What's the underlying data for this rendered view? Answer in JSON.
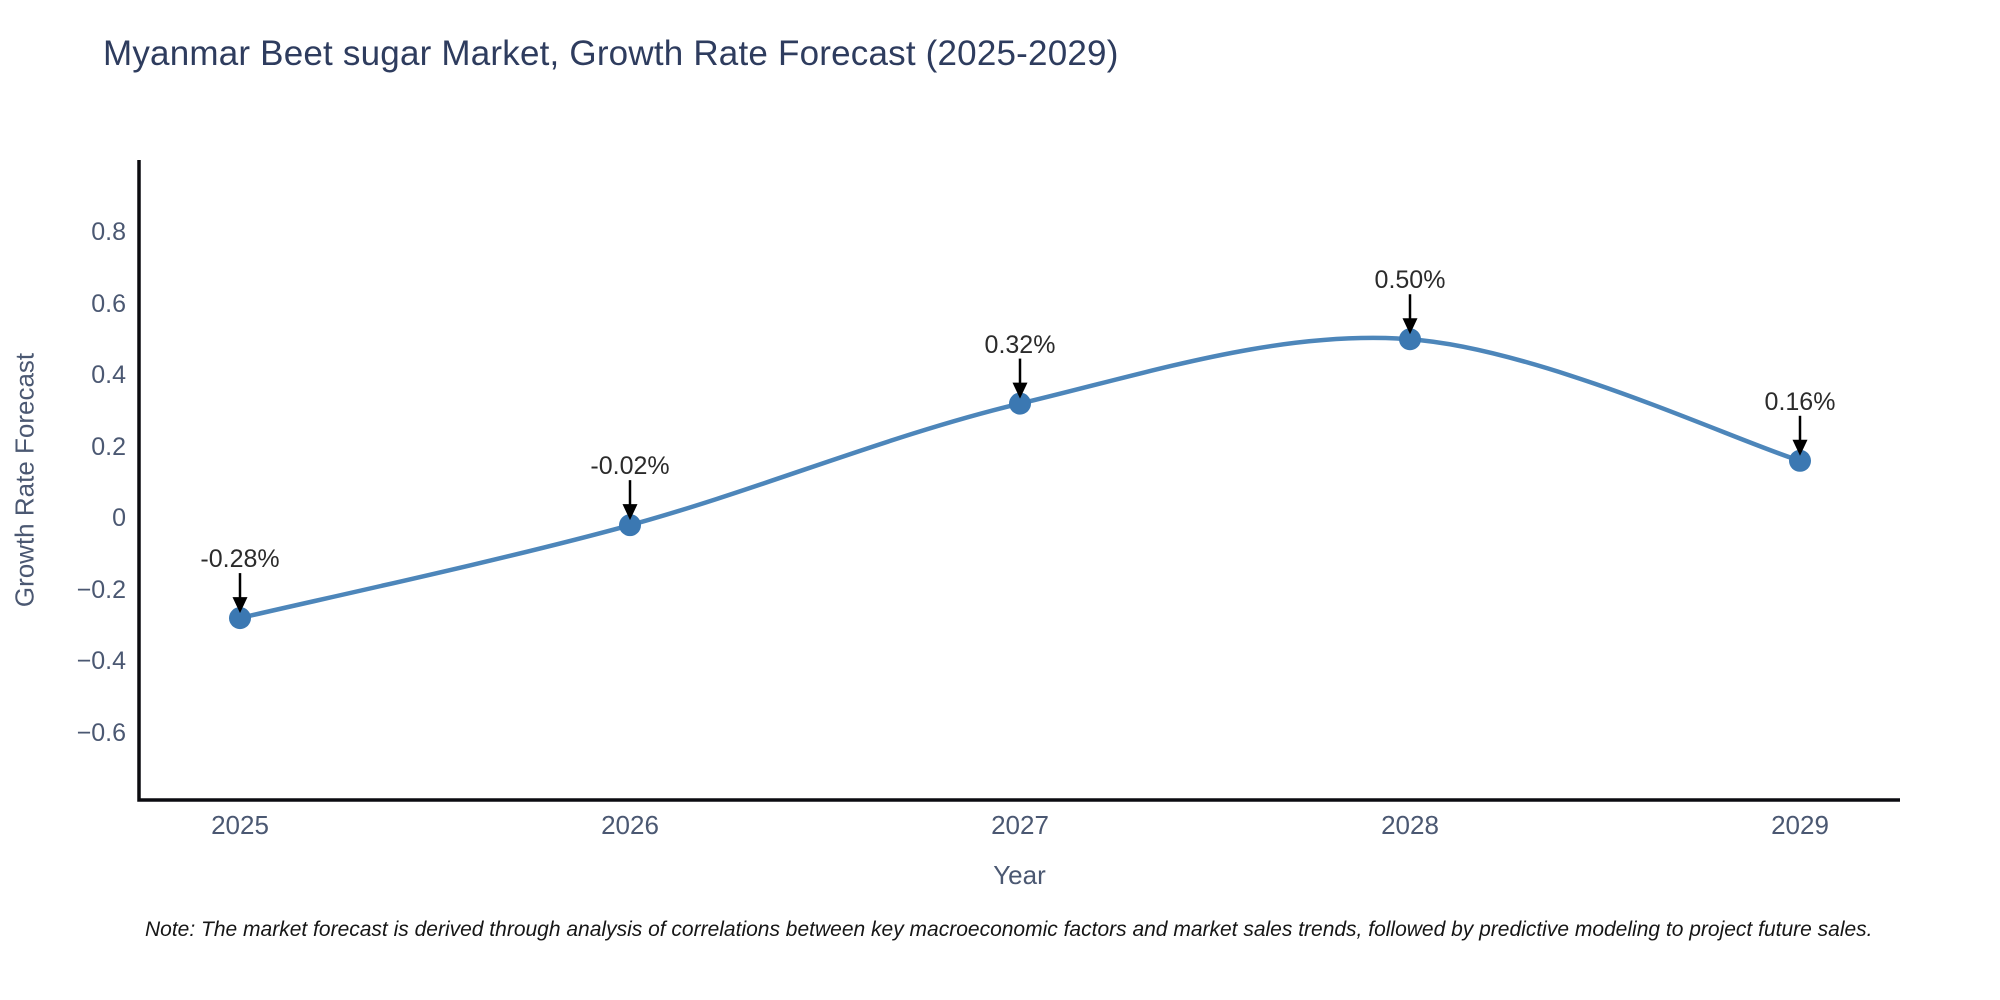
{
  "title": "Myanmar Beet sugar Market, Growth Rate Forecast (2025-2029)",
  "note": "Note: The market forecast is derived through analysis of correlations between key macroeconomic factors and market sales trends, followed by predictive modeling to project future sales.",
  "chart_data": {
    "type": "line",
    "title": "Myanmar Beet sugar Market, Growth Rate Forecast (2025-2029)",
    "xlabel": "Year",
    "ylabel": "Growth Rate Forecast",
    "categories": [
      "2025",
      "2026",
      "2027",
      "2028",
      "2029"
    ],
    "values": [
      -0.28,
      -0.02,
      0.32,
      0.5,
      0.16
    ],
    "point_labels": [
      "-0.28%",
      "-0.02%",
      "0.32%",
      "0.50%",
      "0.16%"
    ],
    "ytick_values": [
      0.8,
      0.6,
      0.4,
      0.2,
      0,
      -0.2,
      -0.4,
      -0.6
    ],
    "ytick_labels": [
      "0.8",
      "0.6",
      "0.4",
      "0.2",
      "0",
      "−0.2",
      "−0.4",
      "−0.6"
    ],
    "ylim": [
      -0.79,
      1.0
    ],
    "curve": "spline",
    "grid": false,
    "legend": "none",
    "markers": true,
    "colors": {
      "line": "#4d86ba",
      "marker": "#3b78b2",
      "axis": "#0b0b10",
      "tick_text": "#4b5872",
      "title_text": "#2e3c5e",
      "annotation_text": "#2b2b2b",
      "annotation_arrow": "#000000"
    }
  }
}
